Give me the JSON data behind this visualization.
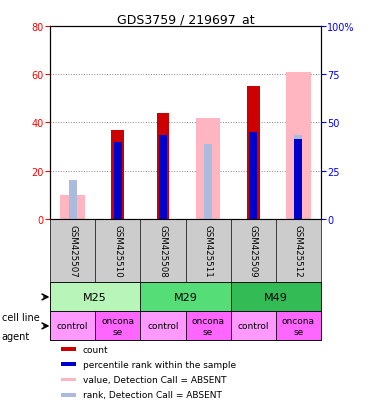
{
  "title": "GDS3759 / 219697_at",
  "samples": [
    "GSM425507",
    "GSM425510",
    "GSM425508",
    "GSM425511",
    "GSM425509",
    "GSM425512"
  ],
  "cell_lines": [
    {
      "name": "M25",
      "span": [
        0,
        2
      ],
      "color": "#b8f0b8"
    },
    {
      "name": "M29",
      "span": [
        2,
        4
      ],
      "color": "#44cc66"
    },
    {
      "name": "M49",
      "span": [
        4,
        6
      ],
      "color": "#22bb44"
    }
  ],
  "agents": [
    "control",
    "onconase",
    "control",
    "onconase",
    "control",
    "onconase"
  ],
  "count_values": [
    0,
    37,
    44,
    0,
    55,
    0
  ],
  "rank_values": [
    0,
    32,
    35,
    0,
    36,
    33
  ],
  "absent_value": [
    10,
    0,
    0,
    42,
    0,
    61
  ],
  "absent_rank": [
    16,
    0,
    0,
    31,
    0,
    35
  ],
  "left_ylim": [
    0,
    80
  ],
  "right_ylim": [
    0,
    100
  ],
  "left_yticks": [
    0,
    20,
    40,
    60,
    80
  ],
  "right_yticks": [
    0,
    25,
    50,
    75,
    100
  ],
  "right_yticklabels": [
    "0",
    "25",
    "50",
    "75",
    "100%"
  ],
  "count_color": "#cc0000",
  "rank_color": "#0000cc",
  "absent_value_color": "#ffb6c1",
  "absent_rank_color": "#aabbdd",
  "grid_color": "#888888",
  "bg_color": "#ffffff",
  "sample_bg": "#cccccc",
  "tick_fontsize": 7,
  "title_fontsize": 9,
  "legend_items": [
    [
      "#cc0000",
      "count"
    ],
    [
      "#0000cc",
      "percentile rank within the sample"
    ],
    [
      "#ffb6c1",
      "value, Detection Call = ABSENT"
    ],
    [
      "#aabbdd",
      "rank, Detection Call = ABSENT"
    ]
  ]
}
